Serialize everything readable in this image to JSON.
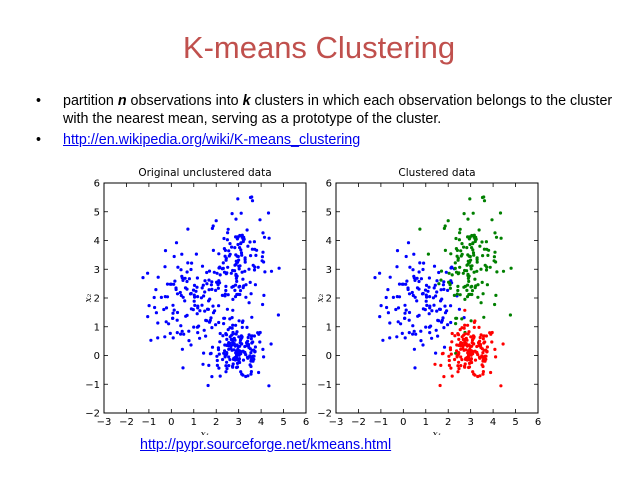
{
  "slide": {
    "title": "K-means Clustering",
    "bullets": [
      {
        "parts": [
          {
            "t": "partition "
          },
          {
            "t": "n",
            "em": true
          },
          {
            "t": " observations into "
          },
          {
            "t": "k",
            "em": true
          },
          {
            "t": " clusters in which each observation belongs to the cluster with the nearest mean, serving as a prototype of the cluster."
          }
        ]
      },
      {
        "link": "http://en.wikipedia.org/wiki/K-means_clustering"
      }
    ],
    "footer_link": "http://pypr.sourceforge.net/kmeans.html"
  },
  "chart_data": [
    {
      "type": "scatter",
      "title": "Original unclustered data",
      "xlabel": "x₁",
      "ylabel": "x₂",
      "xlim": [
        -3,
        6
      ],
      "ylim": [
        -2,
        6
      ],
      "xticks": [
        "−3",
        "−2",
        "−1",
        "0",
        "1",
        "2",
        "3",
        "4",
        "5",
        "6"
      ],
      "yticks": [
        "−2",
        "−1",
        "0",
        "1",
        "2",
        "3",
        "4",
        "5",
        "6"
      ],
      "grid": false,
      "colors": [
        "#0000ff"
      ],
      "clusters": [
        {
          "center": [
            0.8,
            1.8
          ],
          "spread": [
            0.9,
            0.85
          ],
          "count": 140
        },
        {
          "center": [
            3.0,
            3.3
          ],
          "spread": [
            0.65,
            0.95
          ],
          "count": 150
        },
        {
          "center": [
            3.0,
            0.1
          ],
          "spread": [
            0.6,
            0.45
          ],
          "count": 170
        }
      ]
    },
    {
      "type": "scatter",
      "title": "Clustered data",
      "xlabel": "x₁",
      "ylabel": "x₂",
      "xlim": [
        -3,
        6
      ],
      "ylim": [
        -2,
        6
      ],
      "xticks": [
        "−3",
        "−2",
        "−1",
        "0",
        "1",
        "2",
        "3",
        "4",
        "5",
        "6"
      ],
      "yticks": [
        "−2",
        "−1",
        "0",
        "1",
        "2",
        "3",
        "4",
        "5",
        "6"
      ],
      "grid": false,
      "colors": [
        "#0000ff",
        "#008000",
        "#ff0000"
      ],
      "clusters": [
        {
          "center": [
            0.8,
            1.8
          ],
          "spread": [
            0.9,
            0.85
          ],
          "count": 140
        },
        {
          "center": [
            3.0,
            3.3
          ],
          "spread": [
            0.65,
            0.95
          ],
          "count": 150
        },
        {
          "center": [
            3.0,
            0.1
          ],
          "spread": [
            0.6,
            0.45
          ],
          "count": 170
        }
      ]
    }
  ]
}
